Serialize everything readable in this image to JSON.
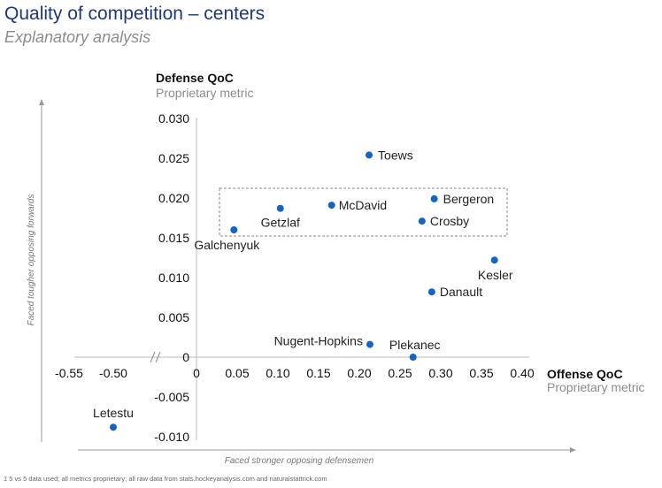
{
  "title": "Quality of competition – centers",
  "subtitle": "Explanatory analysis",
  "footnote": "1 5 vs 5 data used; all metrics proprietary; all raw data from stats.hockeyanalysis.com and naturalstattrick.com",
  "chart_data": {
    "type": "scatter",
    "xlabel": "Offense QoC",
    "xlabel_sub": "Proprietary metric",
    "ylabel": "Defense QoC",
    "ylabel_sub": "Proprietary metric",
    "x_side_label": "Faced stronger opposing defensemen",
    "y_side_label": "Faced tougher opposing forwards",
    "x_ticks": [
      "-0.55",
      "-0.50",
      "0",
      "0.05",
      "0.10",
      "0.15",
      "0.20",
      "0.25",
      "0.30",
      "0.35",
      "0.40"
    ],
    "y_ticks": [
      "0.030",
      "0.025",
      "0.020",
      "0.015",
      "0.010",
      "0.005",
      "0",
      "-0.005",
      "-0.010"
    ],
    "x_axis_break": "between -0.50 and 0",
    "ylim": [
      -0.01,
      0.03
    ],
    "xlim": [
      -0.55,
      0.4
    ],
    "highlight_box": "Crosby, Bergeron, McDavid, Getzlaf, Galchenyuk group",
    "points": [
      {
        "name": "Toews",
        "x": 0.212,
        "y": 0.0254
      },
      {
        "name": "Bergeron",
        "x": 0.292,
        "y": 0.0199
      },
      {
        "name": "McDavid",
        "x": 0.166,
        "y": 0.0191
      },
      {
        "name": "Getzlaf",
        "x": 0.103,
        "y": 0.0187
      },
      {
        "name": "Crosby",
        "x": 0.277,
        "y": 0.0171
      },
      {
        "name": "Galchenyuk",
        "x": 0.046,
        "y": 0.016
      },
      {
        "name": "Kesler",
        "x": 0.366,
        "y": 0.0122
      },
      {
        "name": "Danault",
        "x": 0.289,
        "y": 0.0082
      },
      {
        "name": "Nugent-Hopkins",
        "x": 0.213,
        "y": 0.0016
      },
      {
        "name": "Plekanec",
        "x": 0.266,
        "y": 0.0
      },
      {
        "name": "Letestu",
        "x": -0.5,
        "y": -0.0088
      }
    ],
    "point_color": "#1565c0"
  }
}
